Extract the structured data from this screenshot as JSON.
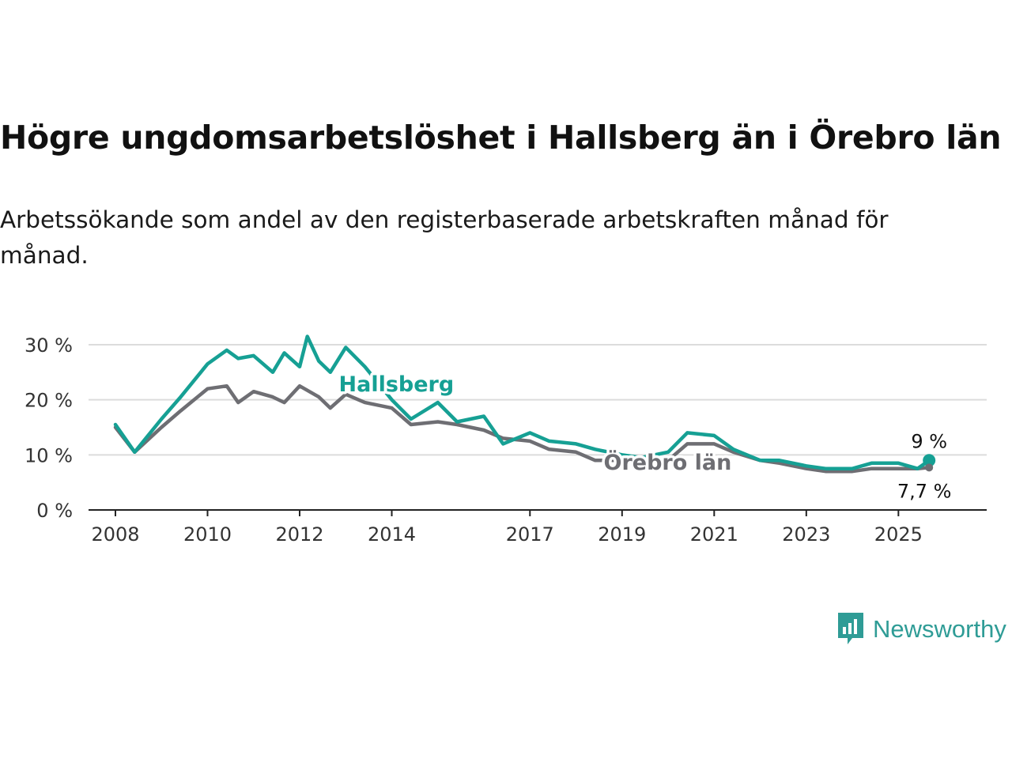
{
  "header": {
    "title": "Högre ungdomsarbetslöshet i Hallsberg än i Örebro län",
    "subtitle": "Arbetssökande som andel av den registerbaserade arbetskraften månad för månad."
  },
  "brand": {
    "name": "Newsworthy",
    "color": "#2f9c96"
  },
  "chart_data": {
    "type": "line",
    "x_ticks": [
      "2008",
      "2010",
      "2012",
      "2014",
      "2017",
      "2019",
      "2021",
      "2023",
      "2025"
    ],
    "y_ticks": [
      "0 %",
      "10 %",
      "20 %",
      "30 %"
    ],
    "ylim": [
      0,
      32
    ],
    "xlim": [
      "2007-06",
      "2026-12"
    ],
    "grid": true,
    "series": [
      {
        "name": "Hallsberg",
        "color": "#16a094",
        "end_label": "9 %",
        "points": [
          [
            "2008-01",
            15.5
          ],
          [
            "2008-06",
            10.5
          ],
          [
            "2009-01",
            16.5
          ],
          [
            "2009-06",
            20.5
          ],
          [
            "2010-01",
            26.5
          ],
          [
            "2010-06",
            29
          ],
          [
            "2010-09",
            27.5
          ],
          [
            "2011-01",
            28
          ],
          [
            "2011-06",
            25
          ],
          [
            "2011-09",
            28.5
          ],
          [
            "2012-01",
            26
          ],
          [
            "2012-03",
            31.5
          ],
          [
            "2012-06",
            27
          ],
          [
            "2012-09",
            25
          ],
          [
            "2013-01",
            29.5
          ],
          [
            "2013-06",
            26
          ],
          [
            "2014-01",
            20
          ],
          [
            "2014-06",
            16.5
          ],
          [
            "2015-01",
            19.5
          ],
          [
            "2015-06",
            16
          ],
          [
            "2016-01",
            17
          ],
          [
            "2016-06",
            12
          ],
          [
            "2017-01",
            14
          ],
          [
            "2017-06",
            12.5
          ],
          [
            "2018-01",
            12
          ],
          [
            "2018-06",
            11
          ],
          [
            "2019-01",
            10
          ],
          [
            "2019-06",
            9.5
          ],
          [
            "2020-01",
            10.5
          ],
          [
            "2020-06",
            14
          ],
          [
            "2021-01",
            13.5
          ],
          [
            "2021-06",
            11
          ],
          [
            "2022-01",
            9
          ],
          [
            "2022-06",
            9
          ],
          [
            "2023-01",
            8
          ],
          [
            "2023-06",
            7.5
          ],
          [
            "2024-01",
            7.5
          ],
          [
            "2024-06",
            8.5
          ],
          [
            "2025-01",
            8.5
          ],
          [
            "2025-06",
            7.5
          ],
          [
            "2025-09",
            9
          ]
        ]
      },
      {
        "name": "Örebro län",
        "color": "#6e6e73",
        "end_label": "7,7 %",
        "points": [
          [
            "2008-01",
            15
          ],
          [
            "2008-06",
            10.5
          ],
          [
            "2009-01",
            15
          ],
          [
            "2009-06",
            18
          ],
          [
            "2010-01",
            22
          ],
          [
            "2010-06",
            22.5
          ],
          [
            "2010-09",
            19.5
          ],
          [
            "2011-01",
            21.5
          ],
          [
            "2011-06",
            20.5
          ],
          [
            "2011-09",
            19.5
          ],
          [
            "2012-01",
            22.5
          ],
          [
            "2012-06",
            20.5
          ],
          [
            "2012-09",
            18.5
          ],
          [
            "2013-01",
            21
          ],
          [
            "2013-06",
            19.5
          ],
          [
            "2014-01",
            18.5
          ],
          [
            "2014-06",
            15.5
          ],
          [
            "2015-01",
            16
          ],
          [
            "2015-06",
            15.5
          ],
          [
            "2016-01",
            14.5
          ],
          [
            "2016-06",
            13
          ],
          [
            "2017-01",
            12.5
          ],
          [
            "2017-06",
            11
          ],
          [
            "2018-01",
            10.5
          ],
          [
            "2018-06",
            9
          ],
          [
            "2019-01",
            9
          ],
          [
            "2019-06",
            8.5
          ],
          [
            "2020-01",
            9
          ],
          [
            "2020-06",
            12
          ],
          [
            "2021-01",
            12
          ],
          [
            "2021-06",
            10.5
          ],
          [
            "2022-01",
            9
          ],
          [
            "2022-06",
            8.5
          ],
          [
            "2023-01",
            7.5
          ],
          [
            "2023-06",
            7
          ],
          [
            "2024-01",
            7
          ],
          [
            "2024-06",
            7.5
          ],
          [
            "2025-01",
            7.5
          ],
          [
            "2025-06",
            7.5
          ],
          [
            "2025-09",
            7.7
          ]
        ]
      }
    ]
  }
}
